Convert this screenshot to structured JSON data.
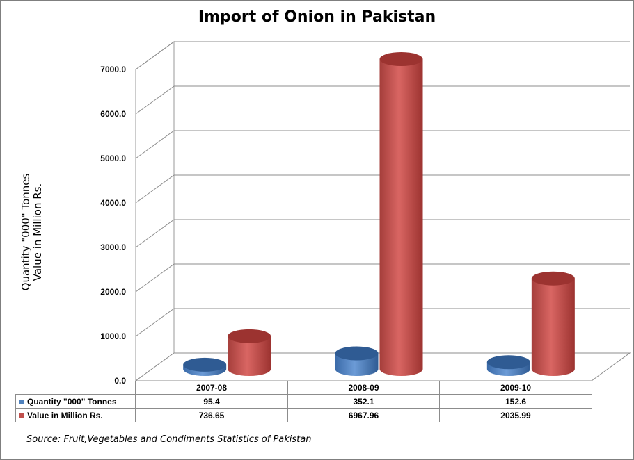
{
  "chart_data": {
    "type": "bar",
    "title": "Import of Onion in Pakistan",
    "ylabel_lines": [
      "Quantity \"000\" Tonnes",
      "Value in Million Rs."
    ],
    "categories": [
      "2007-08",
      "2008-09",
      "2009-10"
    ],
    "series": [
      {
        "name": "Quantity \"000\" Tonnes",
        "values": [
          95.4,
          352.1,
          152.6
        ],
        "value_labels": [
          "95.4",
          "352.1",
          "152.6"
        ],
        "color": "#4f81bd"
      },
      {
        "name": "Value in Million Rs.",
        "values": [
          736.65,
          6967.96,
          2035.99
        ],
        "value_labels": [
          "736.65",
          "6967.96",
          "2035.99"
        ],
        "color": "#c0504d"
      }
    ],
    "ylim": [
      0,
      7000
    ],
    "yticks": [
      "0.0",
      "1000.0",
      "2000.0",
      "3000.0",
      "4000.0",
      "5000.0",
      "6000.0",
      "7000.0"
    ],
    "grid": true,
    "style": "3d-cylinder",
    "legend": "data-table"
  },
  "source": "Source: Fruit,Vegetables and Condiments Statistics of Pakistan"
}
